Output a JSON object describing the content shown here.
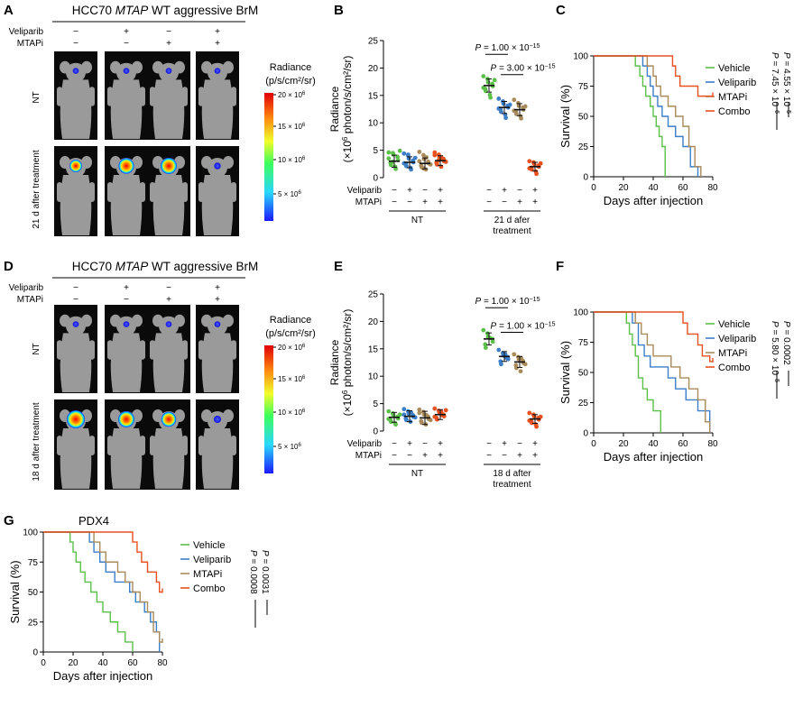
{
  "colors": {
    "vehicle": "#5cbf4a",
    "veliparib": "#3d7ec8",
    "mtapi": "#a98a5a",
    "combo": "#e8511f",
    "mouse_bg": "#0a0a0a",
    "mouse_body": "#9a9a9a"
  },
  "panels": {
    "A": {
      "letter": "A",
      "title_pre": "HCC70 ",
      "title_italic": "MTAP",
      "title_post": " WT aggressive BrM",
      "row1": "Veliparib",
      "row2": "MTAPi",
      "row1_signs": [
        "−",
        "+",
        "−",
        "+"
      ],
      "row2_signs": [
        "−",
        "−",
        "+",
        "+"
      ],
      "nt_label": "NT",
      "treat_label": "21 d after treatment",
      "heat": [
        0.55,
        0.8,
        0.85,
        0.1
      ]
    },
    "D": {
      "letter": "D",
      "title_pre": "HCC70 ",
      "title_italic": "MTAP",
      "title_post": " WT aggressive BrM",
      "row1": "Veliparib",
      "row2": "MTAPi",
      "row1_signs": [
        "−",
        "+",
        "−",
        "+"
      ],
      "row2_signs": [
        "−",
        "−",
        "+",
        "+"
      ],
      "nt_label": "NT",
      "treat_label": "18 d after treatment",
      "heat": [
        1.0,
        0.85,
        0.75,
        0.15
      ]
    },
    "colorbar_title1": "Radiance",
    "colorbar_title2": "(p/s/cm²/sr)",
    "colorbar_ticks": [
      "20 × 10",
      "15 × 10",
      "10 × 10",
      "5 × 10"
    ],
    "colorbar_exp": "6"
  },
  "chart_data": [
    {
      "panel": "B",
      "type": "scatter",
      "ylabel_1": "Radiance",
      "ylabel_2": "(×10",
      "ylabel_3": " photon/s/cm²/sr)",
      "ylabel_exp": "6",
      "ylim": [
        0,
        25
      ],
      "yticks": [
        "0",
        "5",
        "10",
        "15",
        "20",
        "25"
      ],
      "row1": "Veliparib",
      "row2": "MTAPi",
      "row1_signs": [
        "−",
        "+",
        "−",
        "+",
        "−",
        "+",
        "−",
        "+"
      ],
      "row2_signs": [
        "−",
        "−",
        "+",
        "+",
        "−",
        "−",
        "+",
        "+"
      ],
      "group1": "NT",
      "group2_l1": "21 d afer",
      "group2_l2": "treatment",
      "groups": [
        {
          "series": "vehicle",
          "mean": 3.0,
          "sd": 1.1,
          "values": [
            4.6,
            4.5,
            4.2,
            3.8,
            3.2,
            2.7,
            2.3,
            2.0,
            1.6,
            4.9,
            3.5,
            2.9
          ]
        },
        {
          "series": "veliparib",
          "mean": 2.8,
          "sd": 1.0,
          "values": [
            4.4,
            4.0,
            3.5,
            3.1,
            2.8,
            2.5,
            2.1,
            1.8,
            1.5,
            3.6,
            2.6,
            4.2
          ]
        },
        {
          "series": "mtapi",
          "mean": 2.6,
          "sd": 1.0,
          "values": [
            4.7,
            4.1,
            3.4,
            2.9,
            2.6,
            2.2,
            1.9,
            1.5,
            3.7,
            2.4,
            3.0,
            1.7
          ]
        },
        {
          "series": "combo",
          "mean": 3.1,
          "sd": 0.9,
          "values": [
            4.6,
            4.2,
            3.8,
            3.4,
            3.0,
            2.7,
            2.4,
            2.0,
            3.6,
            2.9,
            4.1,
            3.2
          ]
        },
        {
          "series": "vehicle",
          "mean": 16.8,
          "sd": 1.2,
          "values": [
            18.5,
            18.0,
            17.4,
            17.1,
            16.7,
            16.2,
            15.8,
            15.1,
            14.6,
            17.8,
            16.4
          ]
        },
        {
          "series": "veliparib",
          "mean": 12.8,
          "sd": 1.1,
          "values": [
            14.4,
            13.9,
            13.5,
            13.1,
            12.8,
            12.4,
            12.0,
            11.5,
            10.9,
            13.3,
            12.6
          ]
        },
        {
          "series": "mtapi",
          "mean": 12.4,
          "sd": 1.1,
          "values": [
            14.2,
            13.6,
            13.1,
            12.8,
            12.4,
            12.0,
            11.6,
            11.2,
            10.8,
            13.0,
            12.2
          ]
        },
        {
          "series": "combo",
          "mean": 2.0,
          "sd": 0.8,
          "values": [
            3.0,
            2.8,
            2.5,
            2.2,
            2.0,
            1.8,
            1.5,
            1.1,
            0.7,
            2.6,
            1.7
          ]
        }
      ],
      "sig": [
        {
          "from": 4,
          "to": 5,
          "y": 22.5,
          "p": "P",
          "eq": " = 1.00 × 10",
          "exp": "−15"
        },
        {
          "from": 5,
          "to": 6,
          "y": 18.8,
          "p": "P",
          "eq": " = 3.00 × 10",
          "exp": "−15"
        }
      ]
    },
    {
      "panel": "E",
      "type": "scatter",
      "ylabel_1": "Radiance",
      "ylabel_2": "(×10",
      "ylabel_3": " photon/s/cm²/sr)",
      "ylabel_exp": "6",
      "ylim": [
        0,
        25
      ],
      "yticks": [
        "0",
        "5",
        "10",
        "15",
        "20",
        "25"
      ],
      "row1": "Veliparib",
      "row2": "MTAPi",
      "row1_signs": [
        "−",
        "+",
        "−",
        "+",
        "−",
        "+",
        "−",
        "+"
      ],
      "row2_signs": [
        "−",
        "−",
        "+",
        "+",
        "−",
        "−",
        "+",
        "+"
      ],
      "group1": "NT",
      "group2_l1": "18 d after",
      "group2_l2": "treatment",
      "groups": [
        {
          "series": "vehicle",
          "mean": 2.5,
          "sd": 0.9,
          "values": [
            3.6,
            3.2,
            2.9,
            2.6,
            2.3,
            2.0,
            1.7,
            1.4,
            1.2,
            3.0,
            2.2
          ]
        },
        {
          "series": "veliparib",
          "mean": 2.7,
          "sd": 1.0,
          "values": [
            4.0,
            3.6,
            3.2,
            2.9,
            2.6,
            2.3,
            2.0,
            1.7,
            3.4,
            2.5,
            3.0
          ]
        },
        {
          "series": "mtapi",
          "mean": 2.4,
          "sd": 1.2,
          "values": [
            3.9,
            3.5,
            3.0,
            2.6,
            2.2,
            1.8,
            1.5,
            1.2,
            2.9,
            2.0,
            3.3
          ]
        },
        {
          "series": "combo",
          "mean": 3.0,
          "sd": 0.9,
          "values": [
            4.1,
            3.7,
            3.4,
            3.0,
            2.7,
            2.4,
            2.1,
            3.5,
            2.9,
            3.8,
            2.6
          ]
        },
        {
          "series": "vehicle",
          "mean": 16.8,
          "sd": 1.1,
          "values": [
            18.4,
            17.8,
            17.2,
            16.8,
            16.3,
            15.8,
            15.2,
            17.0
          ]
        },
        {
          "series": "veliparib",
          "mean": 13.6,
          "sd": 0.9,
          "values": [
            14.8,
            14.2,
            13.8,
            13.5,
            13.1,
            12.7,
            12.2,
            14.0,
            13.4
          ]
        },
        {
          "series": "mtapi",
          "mean": 12.6,
          "sd": 1.0,
          "values": [
            14.0,
            13.5,
            13.1,
            12.8,
            12.4,
            12.0,
            11.5,
            10.9,
            13.3,
            12.2
          ]
        },
        {
          "series": "combo",
          "mean": 2.2,
          "sd": 0.8,
          "values": [
            3.3,
            3.0,
            2.7,
            2.4,
            2.1,
            1.8,
            1.5,
            1.2,
            0.8,
            2.6,
            1.9
          ]
        }
      ],
      "sig": [
        {
          "from": 4,
          "to": 5,
          "y": 22.5,
          "p": "P",
          "eq": " = 1.00 × 10",
          "exp": "−15"
        },
        {
          "from": 5,
          "to": 6,
          "y": 18.0,
          "p": "P",
          "eq": " = 1.00 × 10",
          "exp": "−15"
        }
      ]
    },
    {
      "panel": "C",
      "type": "line",
      "xlabel": "Days after injection",
      "ylabel": "Survival (%)",
      "xlim": [
        0,
        80
      ],
      "ylim": [
        0,
        100
      ],
      "xticks": [
        "0",
        "20",
        "40",
        "60",
        "80"
      ],
      "yticks": [
        "0",
        "25",
        "50",
        "75",
        "100"
      ],
      "series": [
        {
          "name": "Vehicle",
          "color": "vehicle",
          "x": [
            0,
            25,
            28,
            31,
            33,
            35,
            38,
            40,
            42,
            44,
            46,
            48
          ],
          "y": [
            100,
            100,
            91.7,
            83.3,
            75,
            66.7,
            58.3,
            50,
            41.7,
            33.3,
            25,
            0
          ]
        },
        {
          "name": "Veliparib",
          "color": "veliparib",
          "x": [
            0,
            30,
            33,
            36,
            38,
            40,
            43,
            46,
            50,
            55,
            60,
            65,
            70
          ],
          "y": [
            100,
            100,
            91.7,
            83.3,
            75,
            66.7,
            58.3,
            50,
            41.7,
            33.3,
            25,
            8.3,
            0
          ]
        },
        {
          "name": "MTAPi",
          "color": "mtapi",
          "x": [
            0,
            32,
            36,
            40,
            42,
            45,
            50,
            55,
            60,
            64,
            68,
            72
          ],
          "y": [
            100,
            100,
            91.7,
            83.3,
            75,
            66.7,
            58.3,
            50,
            41.7,
            25,
            8.3,
            0
          ]
        },
        {
          "name": "Combo",
          "color": "combo",
          "x": [
            0,
            50,
            53,
            55,
            58,
            65,
            70,
            75,
            80
          ],
          "y": [
            100,
            100,
            91.7,
            83.3,
            75,
            75,
            66.7,
            66.7,
            66.7
          ],
          "censor_end": true
        }
      ],
      "pvals": [
        {
          "p": "P",
          "eq": " = 7.45 × 10",
          "exp": "−6"
        },
        {
          "p": "P",
          "eq": " = 4.55 × 10",
          "exp": "−5"
        }
      ]
    },
    {
      "panel": "F",
      "type": "line",
      "xlabel": "Days after injection",
      "ylabel": "Survival (%)",
      "xlim": [
        0,
        80
      ],
      "ylim": [
        0,
        100
      ],
      "xticks": [
        "0",
        "20",
        "40",
        "60",
        "80"
      ],
      "yticks": [
        "0",
        "25",
        "50",
        "75",
        "100"
      ],
      "series": [
        {
          "name": "Vehicle",
          "color": "vehicle",
          "x": [
            0,
            20,
            22,
            24,
            26,
            28,
            30,
            33,
            36,
            40,
            45
          ],
          "y": [
            100,
            100,
            90.9,
            81.8,
            72.7,
            63.6,
            45.5,
            36.4,
            27.3,
            18.2,
            0
          ]
        },
        {
          "name": "Veliparib",
          "color": "veliparib",
          "x": [
            0,
            23,
            26,
            30,
            34,
            38,
            42,
            50,
            55,
            62,
            70,
            78
          ],
          "y": [
            100,
            100,
            90.9,
            72.7,
            63.6,
            54.5,
            54.5,
            45.5,
            36.4,
            27.3,
            18.2,
            0
          ]
        },
        {
          "name": "MTAPi",
          "color": "mtapi",
          "x": [
            0,
            25,
            28,
            32,
            36,
            40,
            45,
            52,
            58,
            64,
            70,
            75,
            78
          ],
          "y": [
            100,
            100,
            90.9,
            81.8,
            72.7,
            63.6,
            63.6,
            54.5,
            45.5,
            36.4,
            27.3,
            9.1,
            0
          ]
        },
        {
          "name": "Combo",
          "color": "combo",
          "x": [
            0,
            50,
            55,
            60,
            63,
            66,
            70,
            73,
            75,
            78,
            80
          ],
          "y": [
            100,
            100,
            100,
            90.9,
            81.8,
            81.8,
            72.7,
            63.6,
            63.6,
            59,
            59
          ],
          "censor_end": true
        }
      ],
      "pvals": [
        {
          "p": "P",
          "eq": " = 5.80 × 10",
          "exp": "−5"
        },
        {
          "p": "P",
          "eq": " = 0.0002",
          "exp": ""
        }
      ]
    },
    {
      "panel": "G",
      "type": "line",
      "title": "PDX4",
      "xlabel": "Days after injection",
      "ylabel": "Survival (%)",
      "xlim": [
        0,
        80
      ],
      "ylim": [
        0,
        100
      ],
      "xticks": [
        "0",
        "20",
        "40",
        "60",
        "80"
      ],
      "yticks": [
        "0",
        "25",
        "50",
        "75",
        "100"
      ],
      "series": [
        {
          "name": "Vehicle",
          "color": "vehicle",
          "x": [
            0,
            15,
            18,
            20,
            22,
            25,
            28,
            32,
            36,
            40,
            45,
            50,
            55,
            58,
            60
          ],
          "y": [
            100,
            100,
            91.7,
            83.3,
            75,
            66.7,
            58.3,
            50,
            41.7,
            33.3,
            25,
            16.7,
            8.3,
            8.3,
            0
          ]
        },
        {
          "name": "Veliparib",
          "color": "veliparib",
          "x": [
            0,
            28,
            31,
            34,
            38,
            42,
            48,
            52,
            58,
            62,
            68,
            72,
            76,
            78
          ],
          "y": [
            100,
            100,
            91.7,
            83.3,
            75,
            66.7,
            58.3,
            58.3,
            50,
            41.7,
            33.3,
            25,
            16.7,
            0
          ]
        },
        {
          "name": "MTAPi",
          "color": "mtapi",
          "x": [
            0,
            30,
            34,
            38,
            42,
            46,
            50,
            55,
            60,
            65,
            70,
            74,
            78,
            80
          ],
          "y": [
            100,
            100,
            91.7,
            83.3,
            75,
            75,
            66.7,
            58.3,
            50,
            41.7,
            33.3,
            16.7,
            8.3,
            8.3
          ],
          "censor_end": true
        },
        {
          "name": "Combo",
          "color": "combo",
          "x": [
            0,
            50,
            55,
            60,
            63,
            66,
            70,
            73,
            76,
            78,
            80
          ],
          "y": [
            100,
            100,
            100,
            91.7,
            83.3,
            75,
            66.7,
            66.7,
            58.3,
            50,
            50
          ],
          "censor_end": true
        }
      ],
      "pvals": [
        {
          "p": "P",
          "eq": " = 0.0008",
          "exp": ""
        },
        {
          "p": "P",
          "eq": " = 0.0031",
          "exp": ""
        }
      ]
    }
  ]
}
